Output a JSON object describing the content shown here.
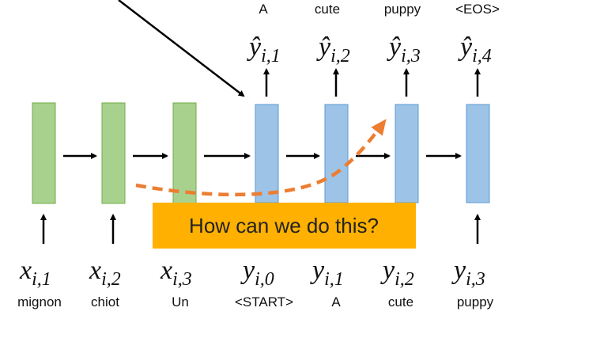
{
  "output_words": [
    "A",
    "cute",
    "puppy",
    "<EOS>"
  ],
  "outputs": [
    {
      "symbol": "ŷ",
      "sub": "i,1"
    },
    {
      "symbol": "ŷ",
      "sub": "i,2"
    },
    {
      "symbol": "ŷ",
      "sub": "i,3"
    },
    {
      "symbol": "ŷ",
      "sub": "i,4"
    }
  ],
  "inputs": [
    {
      "symbol": "x",
      "sub": "i,1"
    },
    {
      "symbol": "x",
      "sub": "i,2"
    },
    {
      "symbol": "x",
      "sub": "i,3"
    },
    {
      "symbol": "y",
      "sub": "i,0"
    },
    {
      "symbol": "y",
      "sub": "i,1"
    },
    {
      "symbol": "y",
      "sub": "i,2"
    },
    {
      "symbol": "y",
      "sub": "i,3"
    }
  ],
  "input_words": [
    "mignon",
    "chiot",
    "Un",
    "<START>",
    "A",
    "cute",
    "puppy"
  ],
  "callout": "How can we do this?"
}
